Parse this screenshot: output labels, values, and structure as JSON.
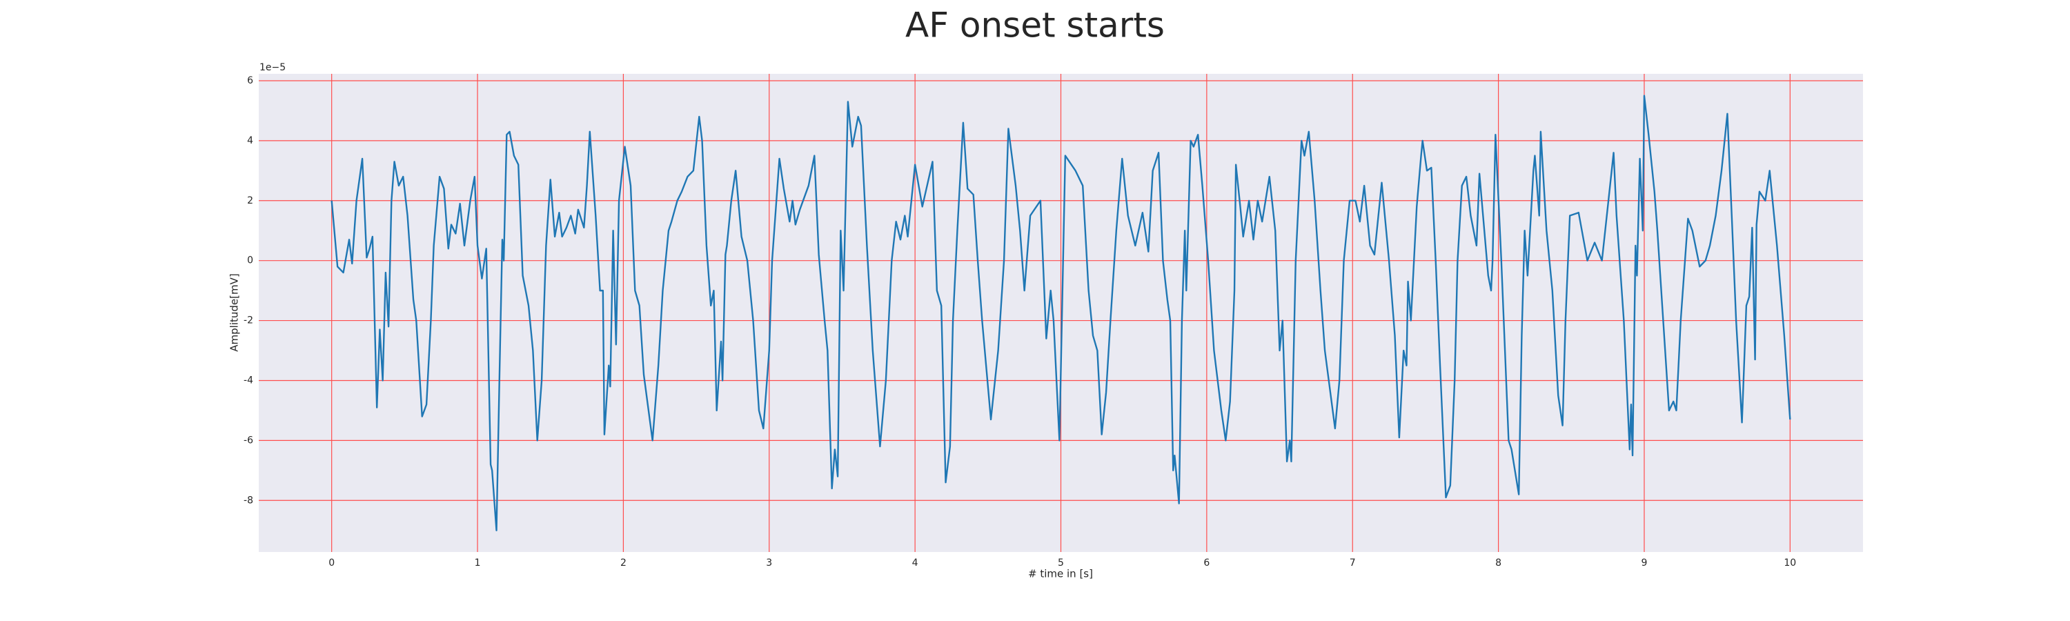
{
  "chart_data": {
    "type": "line",
    "title": "AF onset starts",
    "xlabel": "# time in [s]",
    "ylabel": "Amplitude[mV]",
    "y_offset_label": "1e−5",
    "x": [
      0.0,
      0.04,
      0.08,
      0.12,
      0.14,
      0.17,
      0.21,
      0.24,
      0.26,
      0.28,
      0.31,
      0.33,
      0.35,
      0.37,
      0.39,
      0.41,
      0.43,
      0.46,
      0.49,
      0.52,
      0.56,
      0.58,
      0.62,
      0.65,
      0.68,
      0.7,
      0.74,
      0.77,
      0.8,
      0.82,
      0.85,
      0.88,
      0.91,
      0.95,
      0.98,
      1.0,
      1.03,
      1.06,
      1.09,
      1.1,
      1.13,
      1.15,
      1.17,
      1.18,
      1.2,
      1.22,
      1.25,
      1.28,
      1.31,
      1.35,
      1.38,
      1.41,
      1.44,
      1.47,
      1.5,
      1.53,
      1.56,
      1.58,
      1.61,
      1.64,
      1.67,
      1.69,
      1.73,
      1.75,
      1.77,
      1.81,
      1.84,
      1.86,
      1.87,
      1.9,
      1.91,
      1.93,
      1.95,
      1.97,
      2.01,
      2.05,
      2.08,
      2.11,
      2.14,
      2.2,
      2.24,
      2.27,
      2.31,
      2.33,
      2.37,
      2.4,
      2.44,
      2.48,
      2.52,
      2.54,
      2.57,
      2.6,
      2.62,
      2.64,
      2.67,
      2.68,
      2.7,
      2.71,
      2.74,
      2.77,
      2.81,
      2.85,
      2.89,
      2.93,
      2.96,
      3.0,
      3.02,
      3.07,
      3.1,
      3.14,
      3.16,
      3.18,
      3.21,
      3.27,
      3.31,
      3.34,
      3.38,
      3.4,
      3.43,
      3.45,
      3.47,
      3.49,
      3.51,
      3.54,
      3.57,
      3.61,
      3.63,
      3.67,
      3.71,
      3.76,
      3.8,
      3.84,
      3.87,
      3.9,
      3.93,
      3.95,
      4.0,
      4.05,
      4.12,
      4.15,
      4.18,
      4.21,
      4.24,
      4.26,
      4.29,
      4.33,
      4.36,
      4.4,
      4.43,
      4.46,
      4.52,
      4.57,
      4.61,
      4.64,
      4.69,
      4.72,
      4.75,
      4.79,
      4.86,
      4.9,
      4.93,
      4.95,
      4.99,
      5.03,
      5.1,
      5.15,
      5.19,
      5.22,
      5.25,
      5.28,
      5.31,
      5.34,
      5.38,
      5.42,
      5.46,
      5.51,
      5.56,
      5.6,
      5.63,
      5.67,
      5.7,
      5.73,
      5.75,
      5.77,
      5.78,
      5.81,
      5.83,
      5.85,
      5.86,
      5.89,
      5.91,
      5.94,
      5.97,
      6.01,
      6.05,
      6.1,
      6.13,
      6.16,
      6.19,
      6.2,
      6.23,
      6.25,
      6.29,
      6.32,
      6.35,
      6.38,
      6.43,
      6.47,
      6.5,
      6.52,
      6.55,
      6.57,
      6.58,
      6.61,
      6.62,
      6.65,
      6.67,
      6.7,
      6.74,
      6.78,
      6.81,
      6.88,
      6.91,
      6.94,
      6.98,
      7.02,
      7.05,
      7.08,
      7.12,
      7.15,
      7.2,
      7.25,
      7.29,
      7.32,
      7.35,
      7.37,
      7.38,
      7.4,
      7.44,
      7.47,
      7.48,
      7.51,
      7.54,
      7.57,
      7.6,
      7.64,
      7.67,
      7.7,
      7.72,
      7.75,
      7.78,
      7.81,
      7.85,
      7.87,
      7.93,
      7.95,
      7.96,
      7.98,
      8.02,
      8.07,
      8.09,
      8.14,
      8.16,
      8.18,
      8.2,
      8.24,
      8.25,
      8.28,
      8.29,
      8.33,
      8.37,
      8.41,
      8.44,
      8.46,
      8.49,
      8.55,
      8.61,
      8.66,
      8.71,
      8.79,
      8.81,
      8.86,
      8.9,
      8.91,
      8.92,
      8.94,
      8.95,
      8.97,
      8.99,
      9.0,
      9.03,
      9.07,
      9.09,
      9.13,
      9.17,
      9.2,
      9.22,
      9.25,
      9.3,
      9.33,
      9.38,
      9.42,
      9.45,
      9.49,
      9.53,
      9.57,
      9.6,
      9.63,
      9.67,
      9.7,
      9.72,
      9.74,
      9.76,
      9.77,
      9.79,
      9.83,
      9.86,
      9.88,
      9.91,
      9.96,
      10.0
    ],
    "series": [
      {
        "color": "#1f77b4",
        "values": [
          2.0,
          -0.2,
          -0.4,
          0.7,
          -0.1,
          2.0,
          3.4,
          0.1,
          0.4,
          0.8,
          -4.9,
          -2.3,
          -4.0,
          -0.4,
          -2.2,
          2.0,
          3.3,
          2.5,
          2.8,
          1.5,
          -1.3,
          -2.0,
          -5.2,
          -4.8,
          -2.0,
          0.5,
          2.8,
          2.4,
          0.4,
          1.2,
          0.9,
          1.9,
          0.5,
          2.0,
          2.8,
          0.5,
          -0.6,
          0.4,
          -6.8,
          -7.0,
          -9.0,
          -4.0,
          0.7,
          0.0,
          4.2,
          4.3,
          3.5,
          3.2,
          -0.5,
          -1.5,
          -3.0,
          -6.0,
          -4.0,
          0.5,
          2.7,
          0.8,
          1.6,
          0.8,
          1.1,
          1.5,
          0.9,
          1.7,
          1.1,
          2.5,
          4.3,
          1.5,
          -1.0,
          -1.0,
          -5.8,
          -3.5,
          -4.2,
          1.0,
          -2.8,
          2.0,
          3.8,
          2.5,
          -1.0,
          -1.5,
          -3.8,
          -6.0,
          -3.5,
          -1.0,
          1.0,
          1.3,
          2.0,
          2.3,
          2.8,
          3.0,
          4.8,
          4.0,
          0.5,
          -1.5,
          -1.0,
          -5.0,
          -2.7,
          -4.0,
          0.2,
          0.5,
          2.0,
          3.0,
          0.8,
          0.0,
          -2.0,
          -5.0,
          -5.6,
          -3.0,
          0.0,
          3.4,
          2.4,
          1.3,
          2.0,
          1.2,
          1.7,
          2.5,
          3.5,
          0.2,
          -2.0,
          -3.0,
          -7.6,
          -6.3,
          -7.2,
          1.0,
          -1.0,
          5.3,
          3.8,
          4.8,
          4.5,
          0.5,
          -3.0,
          -6.2,
          -4.0,
          0.0,
          1.3,
          0.7,
          1.5,
          0.8,
          3.2,
          1.8,
          3.3,
          -1.0,
          -1.5,
          -7.4,
          -6.2,
          -2.0,
          1.0,
          4.6,
          2.4,
          2.2,
          0.0,
          -2.0,
          -5.3,
          -3.0,
          0.0,
          4.4,
          2.5,
          1.0,
          -1.0,
          1.5,
          2.0,
          -2.6,
          -1.0,
          -2.0,
          -6.0,
          3.5,
          3.0,
          2.5,
          -1.0,
          -2.5,
          -3.0,
          -5.8,
          -4.4,
          -2.0,
          1.0,
          3.4,
          1.5,
          0.5,
          1.6,
          0.3,
          3.0,
          3.6,
          0.0,
          -1.3,
          -2.0,
          -7.0,
          -6.5,
          -8.1,
          -2.0,
          1.0,
          -1.0,
          4.0,
          3.8,
          4.2,
          2.5,
          0.0,
          -3.0,
          -5.0,
          -6.0,
          -4.7,
          -1.0,
          3.2,
          1.8,
          0.8,
          2.0,
          0.7,
          2.0,
          1.3,
          2.8,
          1.0,
          -3.0,
          -2.0,
          -6.7,
          -6.0,
          -6.7,
          0.0,
          1.0,
          4.0,
          3.5,
          4.3,
          2.0,
          -1.0,
          -3.0,
          -5.6,
          -4.0,
          0.0,
          2.0,
          2.0,
          1.3,
          2.5,
          0.5,
          0.2,
          2.6,
          0.0,
          -2.5,
          -5.9,
          -3.0,
          -3.5,
          -0.7,
          -2.0,
          1.8,
          3.5,
          4.0,
          3.0,
          3.1,
          0.0,
          -3.5,
          -7.9,
          -7.5,
          -4.0,
          0.0,
          2.5,
          2.8,
          1.5,
          0.5,
          2.9,
          -0.5,
          -1.0,
          0.0,
          4.2,
          0.0,
          -6.0,
          -6.3,
          -7.8,
          -2.5,
          1.0,
          -0.5,
          3.0,
          3.5,
          1.5,
          4.3,
          1.0,
          -1.0,
          -4.5,
          -5.5,
          -2.0,
          1.5,
          1.6,
          0.0,
          0.6,
          0.0,
          3.6,
          1.5,
          -2.0,
          -6.3,
          -4.8,
          -6.5,
          0.5,
          -0.5,
          3.4,
          1.0,
          5.5,
          4.2,
          2.3,
          1.0,
          -2.0,
          -5.0,
          -4.7,
          -5.0,
          -2.0,
          1.4,
          1.0,
          -0.2,
          0.0,
          0.5,
          1.5,
          3.0,
          4.9,
          1.5,
          -2.0,
          -5.4,
          -1.5,
          -1.2,
          1.1,
          -3.3,
          1.2,
          2.3,
          2.0,
          3.0,
          2.0,
          0.5,
          -2.5,
          -5.3
        ]
      }
    ],
    "xlim": [
      -0.5,
      10.5
    ],
    "ylim": [
      -9.72,
      6.23
    ],
    "xticks": [
      0,
      1,
      2,
      3,
      4,
      5,
      6,
      7,
      8,
      9,
      10
    ],
    "yticks": [
      -8,
      -6,
      -4,
      -2,
      0,
      2,
      4,
      6
    ],
    "grid": true,
    "grid_color": "#ff4d4d",
    "background": "#eaeaf2"
  }
}
